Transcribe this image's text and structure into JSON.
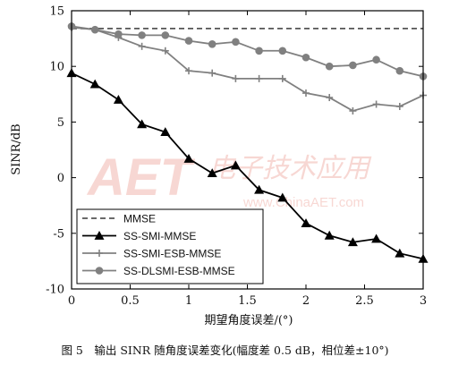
{
  "chart_data": {
    "type": "line",
    "xlabel": "期望角度误差/(°)",
    "ylabel": "SINR/dB",
    "xlim": [
      0,
      3
    ],
    "ylim": [
      -10,
      15
    ],
    "xticks": [
      0,
      0.5,
      1,
      1.5,
      2,
      2.5,
      3
    ],
    "yticks": [
      -10,
      -5,
      0,
      5,
      10,
      15
    ],
    "xtick_labels": [
      "0",
      "0.5",
      "1",
      "1.5",
      "2",
      "2.5",
      "3"
    ],
    "ytick_labels": [
      "-10",
      "-5",
      "0",
      "5",
      "10",
      "15"
    ],
    "grid": false,
    "legend_position": "bottom-left",
    "series": [
      {
        "name": "MMSE",
        "style": "dashed",
        "color": "#555555",
        "marker": "none",
        "x": [
          0,
          0.2,
          0.4,
          0.6,
          0.8,
          1.0,
          1.2,
          1.4,
          1.6,
          1.8,
          2.0,
          2.2,
          2.4,
          2.6,
          2.8,
          3.0
        ],
        "y": [
          13.4,
          13.4,
          13.4,
          13.4,
          13.4,
          13.4,
          13.4,
          13.4,
          13.4,
          13.4,
          13.4,
          13.4,
          13.4,
          13.4,
          13.4,
          13.4
        ]
      },
      {
        "name": "SS-SMI-MMSE",
        "style": "solid",
        "color": "#000000",
        "marker": "triangle",
        "x": [
          0,
          0.2,
          0.4,
          0.6,
          0.8,
          1.0,
          1.2,
          1.4,
          1.6,
          1.8,
          2.0,
          2.2,
          2.4,
          2.6,
          2.8,
          3.0
        ],
        "y": [
          9.4,
          8.4,
          7.0,
          4.8,
          4.1,
          1.7,
          0.4,
          1.1,
          -1.1,
          -1.8,
          -4.1,
          -5.2,
          -5.8,
          -5.5,
          -6.8,
          -7.3
        ]
      },
      {
        "name": "SS-SMI-ESB-MMSE",
        "style": "solid",
        "color": "#808080",
        "marker": "plus",
        "x": [
          0,
          0.2,
          0.4,
          0.6,
          0.8,
          1.0,
          1.2,
          1.4,
          1.6,
          1.8,
          2.0,
          2.2,
          2.4,
          2.6,
          2.8,
          3.0
        ],
        "y": [
          13.5,
          13.3,
          12.6,
          11.8,
          11.4,
          9.6,
          9.4,
          8.9,
          8.9,
          8.9,
          7.6,
          7.2,
          6.0,
          6.6,
          6.4,
          7.4
        ]
      },
      {
        "name": "SS-DLSMI-ESB-MMSE",
        "style": "solid",
        "color": "#808080",
        "marker": "circle",
        "x": [
          0,
          0.2,
          0.4,
          0.6,
          0.8,
          1.0,
          1.2,
          1.4,
          1.6,
          1.8,
          2.0,
          2.2,
          2.4,
          2.6,
          2.8,
          3.0
        ],
        "y": [
          13.6,
          13.3,
          12.9,
          12.8,
          12.8,
          12.3,
          12.0,
          12.2,
          11.4,
          11.4,
          10.8,
          10.0,
          10.1,
          10.6,
          9.6,
          9.1
        ]
      }
    ]
  },
  "caption": "图 5　输出 SINR 随角度误差变化(幅度差 0.5 dB，相位差±10°)",
  "watermark": {
    "logo": "AET",
    "chinese": "电子技术应用",
    "url": "www.ChinaAET.com"
  }
}
